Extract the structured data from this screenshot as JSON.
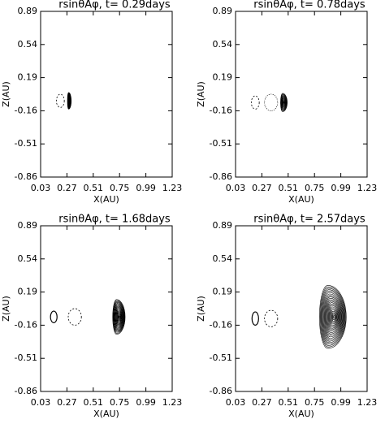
{
  "chart_data": [
    {
      "type": "contour",
      "title": "rsinθAφ, t= 0.29days",
      "xlabel": "X(AU)",
      "ylabel": "Z(AU)",
      "xlim": [
        0.03,
        1.23
      ],
      "xticks": [
        0.03,
        0.27,
        0.51,
        0.75,
        0.99,
        1.23
      ],
      "ylim": [
        -0.86,
        0.89
      ],
      "yticks": [
        -0.86,
        -0.51,
        -0.16,
        0.19,
        0.54,
        0.89
      ]
    },
    {
      "type": "contour",
      "title": "rsinθAφ, t= 0.78days",
      "xlabel": "X(AU)",
      "ylabel": "Z(AU)",
      "xlim": [
        0.03,
        1.23
      ],
      "xticks": [
        0.03,
        0.27,
        0.51,
        0.75,
        0.99,
        1.23
      ],
      "ylim": [
        -0.86,
        0.89
      ],
      "yticks": [
        -0.86,
        -0.51,
        -0.16,
        0.19,
        0.54,
        0.89
      ]
    },
    {
      "type": "contour",
      "title": "rsinθAφ, t= 1.68days",
      "xlabel": "X(AU)",
      "ylabel": "Z(AU)",
      "xlim": [
        0.03,
        1.23
      ],
      "xticks": [
        0.03,
        0.27,
        0.51,
        0.75,
        0.99,
        1.23
      ],
      "ylim": [
        -0.86,
        0.89
      ],
      "yticks": [
        -0.86,
        -0.51,
        -0.16,
        0.19,
        0.54,
        0.89
      ]
    },
    {
      "type": "contour",
      "title": "rsinθAφ, t= 2.57days",
      "xlabel": "X(AU)",
      "ylabel": "Z(AU)",
      "xlim": [
        0.03,
        1.23
      ],
      "xticks": [
        0.03,
        0.27,
        0.51,
        0.75,
        0.99,
        1.23
      ],
      "ylim": [
        -0.86,
        0.89
      ],
      "yticks": [
        -0.86,
        -0.51,
        -0.16,
        0.19,
        0.54,
        0.89
      ]
    }
  ]
}
